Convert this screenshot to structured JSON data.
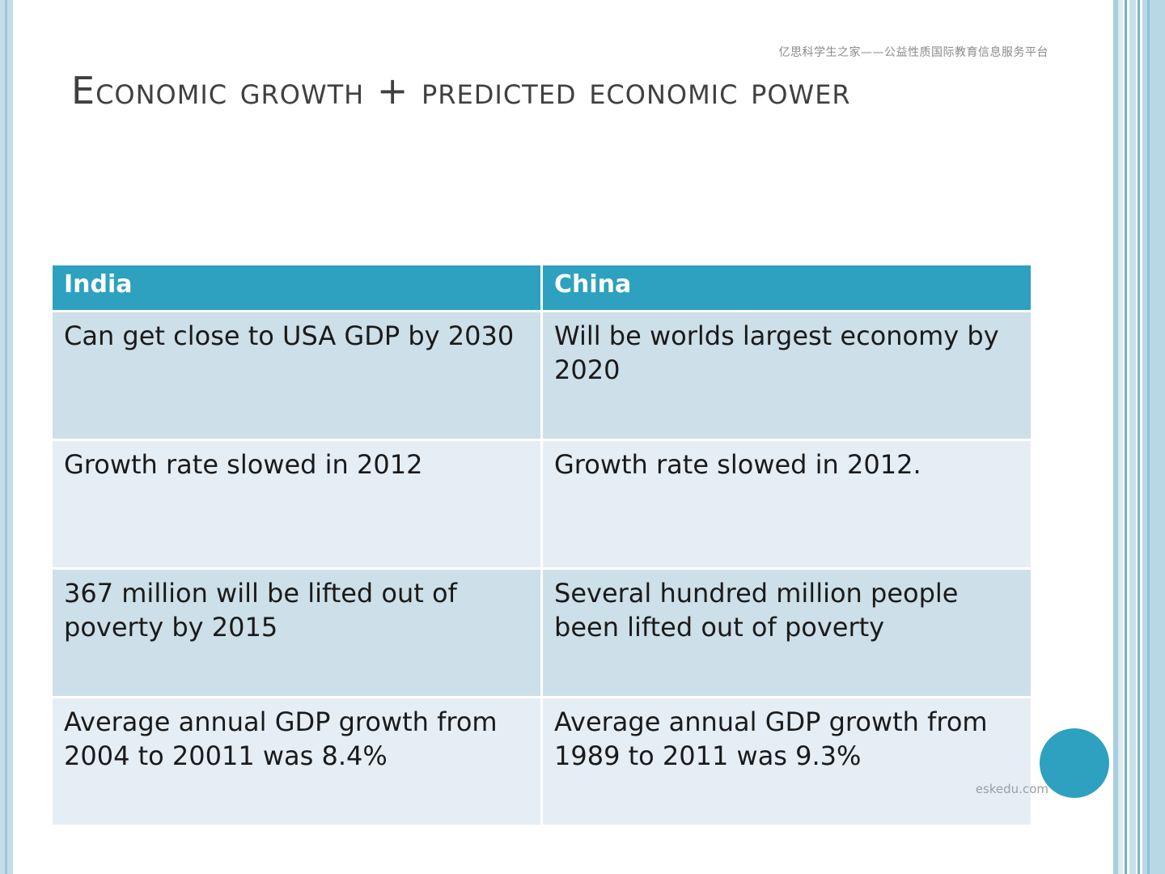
{
  "watermark_top": "亿思科学生之家——公益性质国际教育信息服务平台",
  "title": "Economic growth + predicted economic power",
  "table": {
    "headers": [
      "India",
      "China"
    ],
    "rows": [
      [
        "Can get close to USA GDP by 2030",
        "Will be worlds largest economy by 2020"
      ],
      [
        "Growth rate slowed in 2012",
        "Growth rate slowed in 2012."
      ],
      [
        "367 million will be lifted out of poverty by 2015",
        "Several hundred million people been lifted out of poverty"
      ],
      [
        "Average annual GDP growth from 2004 to 20011 was 8.4%",
        "Average annual GDP growth from 1989 to 2011 was 9.3%"
      ]
    ]
  },
  "watermark_bottom": "eskedu.com",
  "colors": {
    "accent": "#2da1bf",
    "row_dark": "#cddfe8",
    "row_light": "#e6eef5",
    "title_text": "#404040"
  }
}
